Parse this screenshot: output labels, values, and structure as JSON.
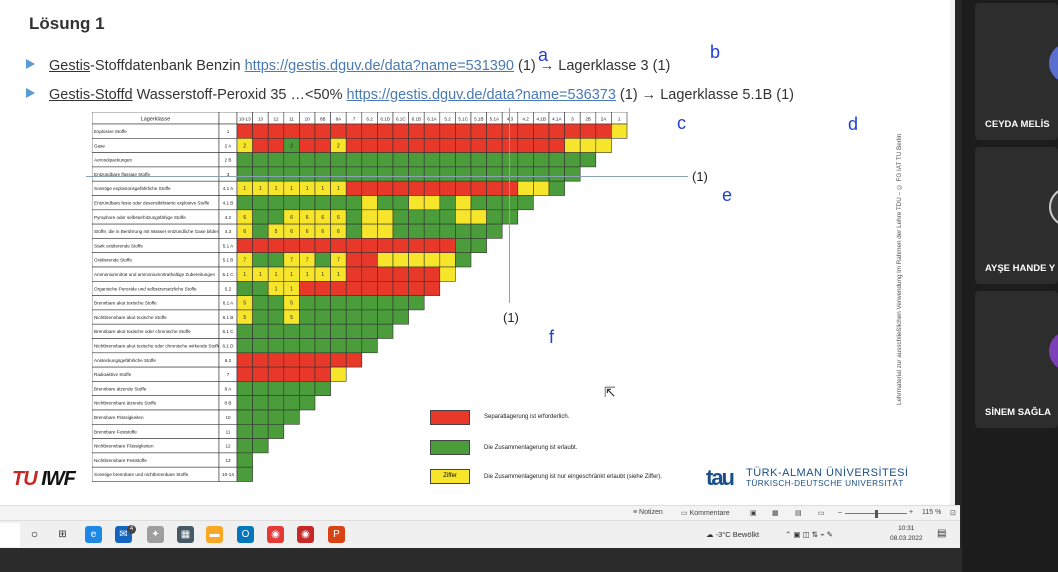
{
  "slide": {
    "title": "Lösung 1",
    "bullet1": {
      "prefix_underlined": "Gestis",
      "text": "-Stoffdatenbank Benzin ",
      "link": "https://gestis.dguv.de/data?name=531390",
      "suffix": " (1) → Lagerklasse 3 (1)"
    },
    "bullet2": {
      "prefix_underlined": "Gestis-Stoffd",
      "text": " Wasserstoff-Peroxid 35 …<50%  ",
      "link": "https://gestis.dguv.de/data?name=536373",
      "suffix": " (1) → Lagerklasse 5.1B (1)"
    },
    "annotations": [
      "a",
      "b",
      "c",
      "d",
      "e",
      "f"
    ],
    "ref_labels": [
      "(1)",
      "(1)"
    ],
    "side_text": "Lehrmaterial zur ausschließlichen Verwendung im Rahmen der Lehre TDU – © FG IAT TU Berlin",
    "table": {
      "corner_header": "Lagerklasse",
      "columns": [
        "10-13",
        "13",
        "12",
        "11",
        "10",
        "8B",
        "8A",
        "7",
        "6.2",
        "6.1D",
        "6.1C",
        "6.1B",
        "6.1A",
        "5.2",
        "5.1C",
        "5.1B",
        "5.1A",
        "4.3",
        "4.2",
        "4.1B",
        "4.1A",
        "3",
        "2B",
        "2A",
        "1"
      ],
      "rows": [
        {
          "name": "Explosive Stoffe",
          "code": "1"
        },
        {
          "name": "Gase",
          "code": "2 A"
        },
        {
          "name": "Aerosolpackungen",
          "code": "2 B"
        },
        {
          "name": "Entzündbare flüssige Stoffe",
          "code": "3"
        },
        {
          "name": "Sonstige explosionsgefährliche Stoffe",
          "code": "4.1 A"
        },
        {
          "name": "Entzündbare feste oder desensibilisierte explosive Stoffe",
          "code": "4.1 B"
        },
        {
          "name": "Pyrophore oder selbsterhitzungsfähige Stoffe",
          "code": "4.2"
        },
        {
          "name": "Stoffe, die in Berührung mit Wasser entzündliche Gase bilden",
          "code": "4.3"
        },
        {
          "name": "Stark oxidierende Stoffe",
          "code": "5.1 A"
        },
        {
          "name": "Oxidierende Stoffe",
          "code": "5.1 B"
        },
        {
          "name": "Ammoniumnitrat und ammoniumnitrathaltige Zubereitungen",
          "code": "5.1 C"
        },
        {
          "name": "Organische Peroxide und selbstzersetzliche Stoffe",
          "code": "5.2"
        },
        {
          "name": "Brennbare akut toxische Stoffe",
          "code": "6.1 A"
        },
        {
          "name": "Nichtbrennbare akut toxische Stoffe",
          "code": "6.1 B"
        },
        {
          "name": "Brennbare akut toxische oder chronische Stoffe",
          "code": "6.1 C"
        },
        {
          "name": "Nichtbrennbare akut toxische oder chronische wirkende Stoffe",
          "code": "6.1 D"
        },
        {
          "name": "Ansteckungsgefährliche Stoffe",
          "code": "6.2"
        },
        {
          "name": "Radioaktive Stoffe",
          "code": "7"
        },
        {
          "name": "Brennbare ätzende Stoffe",
          "code": "8 A"
        },
        {
          "name": "Nichtbrennbare ätzende Stoffe",
          "code": "8 B"
        },
        {
          "name": "Brennbare Flüssigkeiten",
          "code": "10"
        },
        {
          "name": "Brennbare Feststoffe",
          "code": "11"
        },
        {
          "name": "Nichtbrennbare Flüssigkeiten",
          "code": "12"
        },
        {
          "name": "Nichtbrennbare Feststoffe",
          "code": "13"
        },
        {
          "name": "Sonstige brennbare und nichtbrennbare Stoffe",
          "code": "10-13"
        }
      ],
      "cells": [
        "RRRRRRRRRRRRRRRRRRRRRRRRY",
        "YRRGRRYRRRRRRRRRRRRRRYYY",
        "GGGGGGGGGGGGGGGGGGGGGGG",
        "GGGGGGGGGGGGGGGGGGGGGG",
        "YYYYYYYRRRRRRRRRRRYYG",
        "GGGGGGGGYGGYYGYGGGG",
        "YGGYYYYGYYGGGGYYGG",
        "YGYYYYYGYYGGGGGGG",
        "RRRRRRRRRRRRRRGG",
        "YGGYYGYRRYYYYYG",
        "YYYYYYYRRRRRRY",
        "GGYYRRRRRRRRR",
        "YGGYGGGGGGGG",
        "YGGYGGGGGGG",
        "GGGGGGGGGG",
        "GGGGGGGGG",
        "RRRRRRRR",
        "RRRRRRY",
        "GGGGGG",
        "GGGGG",
        "GGGG",
        "GGG",
        "GG",
        "G",
        "G"
      ],
      "cell_digits": {
        "1,0": "2",
        "1,3": "2",
        "1,6": "2",
        "4,0": "1",
        "4,1": "1",
        "4,2": "1",
        "4,3": "1",
        "4,4": "1",
        "4,5": "1",
        "4,6": "1",
        "6,0": "6",
        "6,3": "6",
        "6,4": "6",
        "6,5": "6",
        "6,6": "6",
        "7,0": "6",
        "7,2": "5",
        "7,3": "6",
        "7,4": "6",
        "7,5": "6",
        "7,6": "6",
        "9,0": "7",
        "9,3": "7",
        "9,4": "7",
        "9,6": "7",
        "10,0": "1",
        "10,1": "1",
        "10,2": "1",
        "10,3": "1",
        "10,4": "1",
        "10,5": "1",
        "10,6": "1",
        "11,2": "1",
        "11,3": "1",
        "12,0": "5",
        "12,3": "5",
        "13,0": "5",
        "13,3": "5"
      }
    },
    "legend": [
      {
        "color": "#e8382a",
        "text": "Separatlagerung ist erforderlich."
      },
      {
        "color": "#4a9d3a",
        "text": "Die Zusammenlagerung ist erlaubt."
      },
      {
        "color": "#f7e52b",
        "text": "Die Zusammenlagerung ist nur eingeschränkt erlaubt (siehe Ziffer).",
        "box_text": "Ziffer"
      }
    ],
    "logo_left": {
      "part1": "TU",
      "part2": "IWF"
    },
    "logo_right": {
      "mark": "tau",
      "line1": "TÜRK-ALMAN ÜNİVERSİTESİ",
      "line2": "TÜRKISCH-DEUTSCHE UNIVERSITÄT"
    }
  },
  "statusbar": {
    "notes": "Notizen",
    "comments": "Kommentare",
    "zoom": "115 %"
  },
  "taskbar": {
    "weather": "-3°C  Bewölkt",
    "time": "10:31",
    "date": "08.03.2022",
    "notification_badge": "4"
  },
  "participants": [
    {
      "name": "CEYDA MELİS",
      "avatar_color": "#5b6fd1"
    },
    {
      "name": "AYŞE HANDE Y",
      "avatar_color": "#3a3a3a"
    },
    {
      "name": "SİNEM SAĞLA",
      "avatar_color": "#7c3fb8"
    }
  ],
  "colors": {
    "red": "#e8382a",
    "green": "#4a9d3a",
    "yellow": "#f7e52b",
    "accent": "#5b9bd5"
  }
}
